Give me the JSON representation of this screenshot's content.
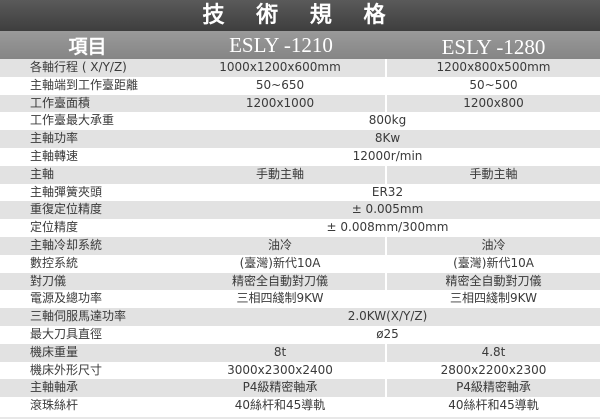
{
  "title": "技 術 規 格",
  "header": {
    "item": "項目",
    "model1": "ESLY -1210",
    "model2": "ESLY -1280"
  },
  "rows": [
    {
      "label": "各軸行程 ( X/Y/Z)",
      "v1": "1000x1200x600mm",
      "v2": "1200x800x500mm"
    },
    {
      "label": "主軸端到工作臺距離",
      "v1": "50~650",
      "v2": "50~500"
    },
    {
      "label": "工作臺面積",
      "v1": "1200x1000",
      "v2": "1200x800"
    },
    {
      "label": "工作臺最大承重",
      "span": "800kg"
    },
    {
      "label": "主軸功率",
      "span": "8Kw"
    },
    {
      "label": "主軸轉速",
      "span": "12000r/min"
    },
    {
      "label": "主軸",
      "v1": "手動主軸",
      "v2": "手動主軸"
    },
    {
      "label": "主軸彈簧夾頭",
      "span": "ER32"
    },
    {
      "label": "重復定位精度",
      "span": "± 0.005mm"
    },
    {
      "label": "定位精度",
      "span": "± 0.008mm/300mm"
    },
    {
      "label": "主軸冷却系統",
      "v1": "油冷",
      "v2": "油冷"
    },
    {
      "label": "數控系統",
      "v1": "(臺灣)新代10A",
      "v2": "(臺灣)新代10A"
    },
    {
      "label": "對刀儀",
      "v1": "精密全自動對刀儀",
      "v2": "精密全自動對刀儀"
    },
    {
      "label": "電源及總功率",
      "v1": "三相四綫制9KW",
      "v2": "三相四綫制9KW"
    },
    {
      "label": "三軸伺服馬達功率",
      "span": "2.0KW(X/Y/Z)"
    },
    {
      "label": "最大刀具直徑",
      "span": "ø25"
    },
    {
      "label": "機床重量",
      "v1": "8t",
      "v2": "4.8t"
    },
    {
      "label": "機床外形尺寸",
      "v1": "3000x2300x2400",
      "v2": "2800x2200x2300"
    },
    {
      "label": "主軸軸承",
      "v1": "P4級精密軸承",
      "v2": "P4級精密軸承"
    },
    {
      "label": "滾珠絲杆",
      "v1": "40絲杆和45導軌",
      "v2": "40絲杆和45導軌"
    }
  ]
}
